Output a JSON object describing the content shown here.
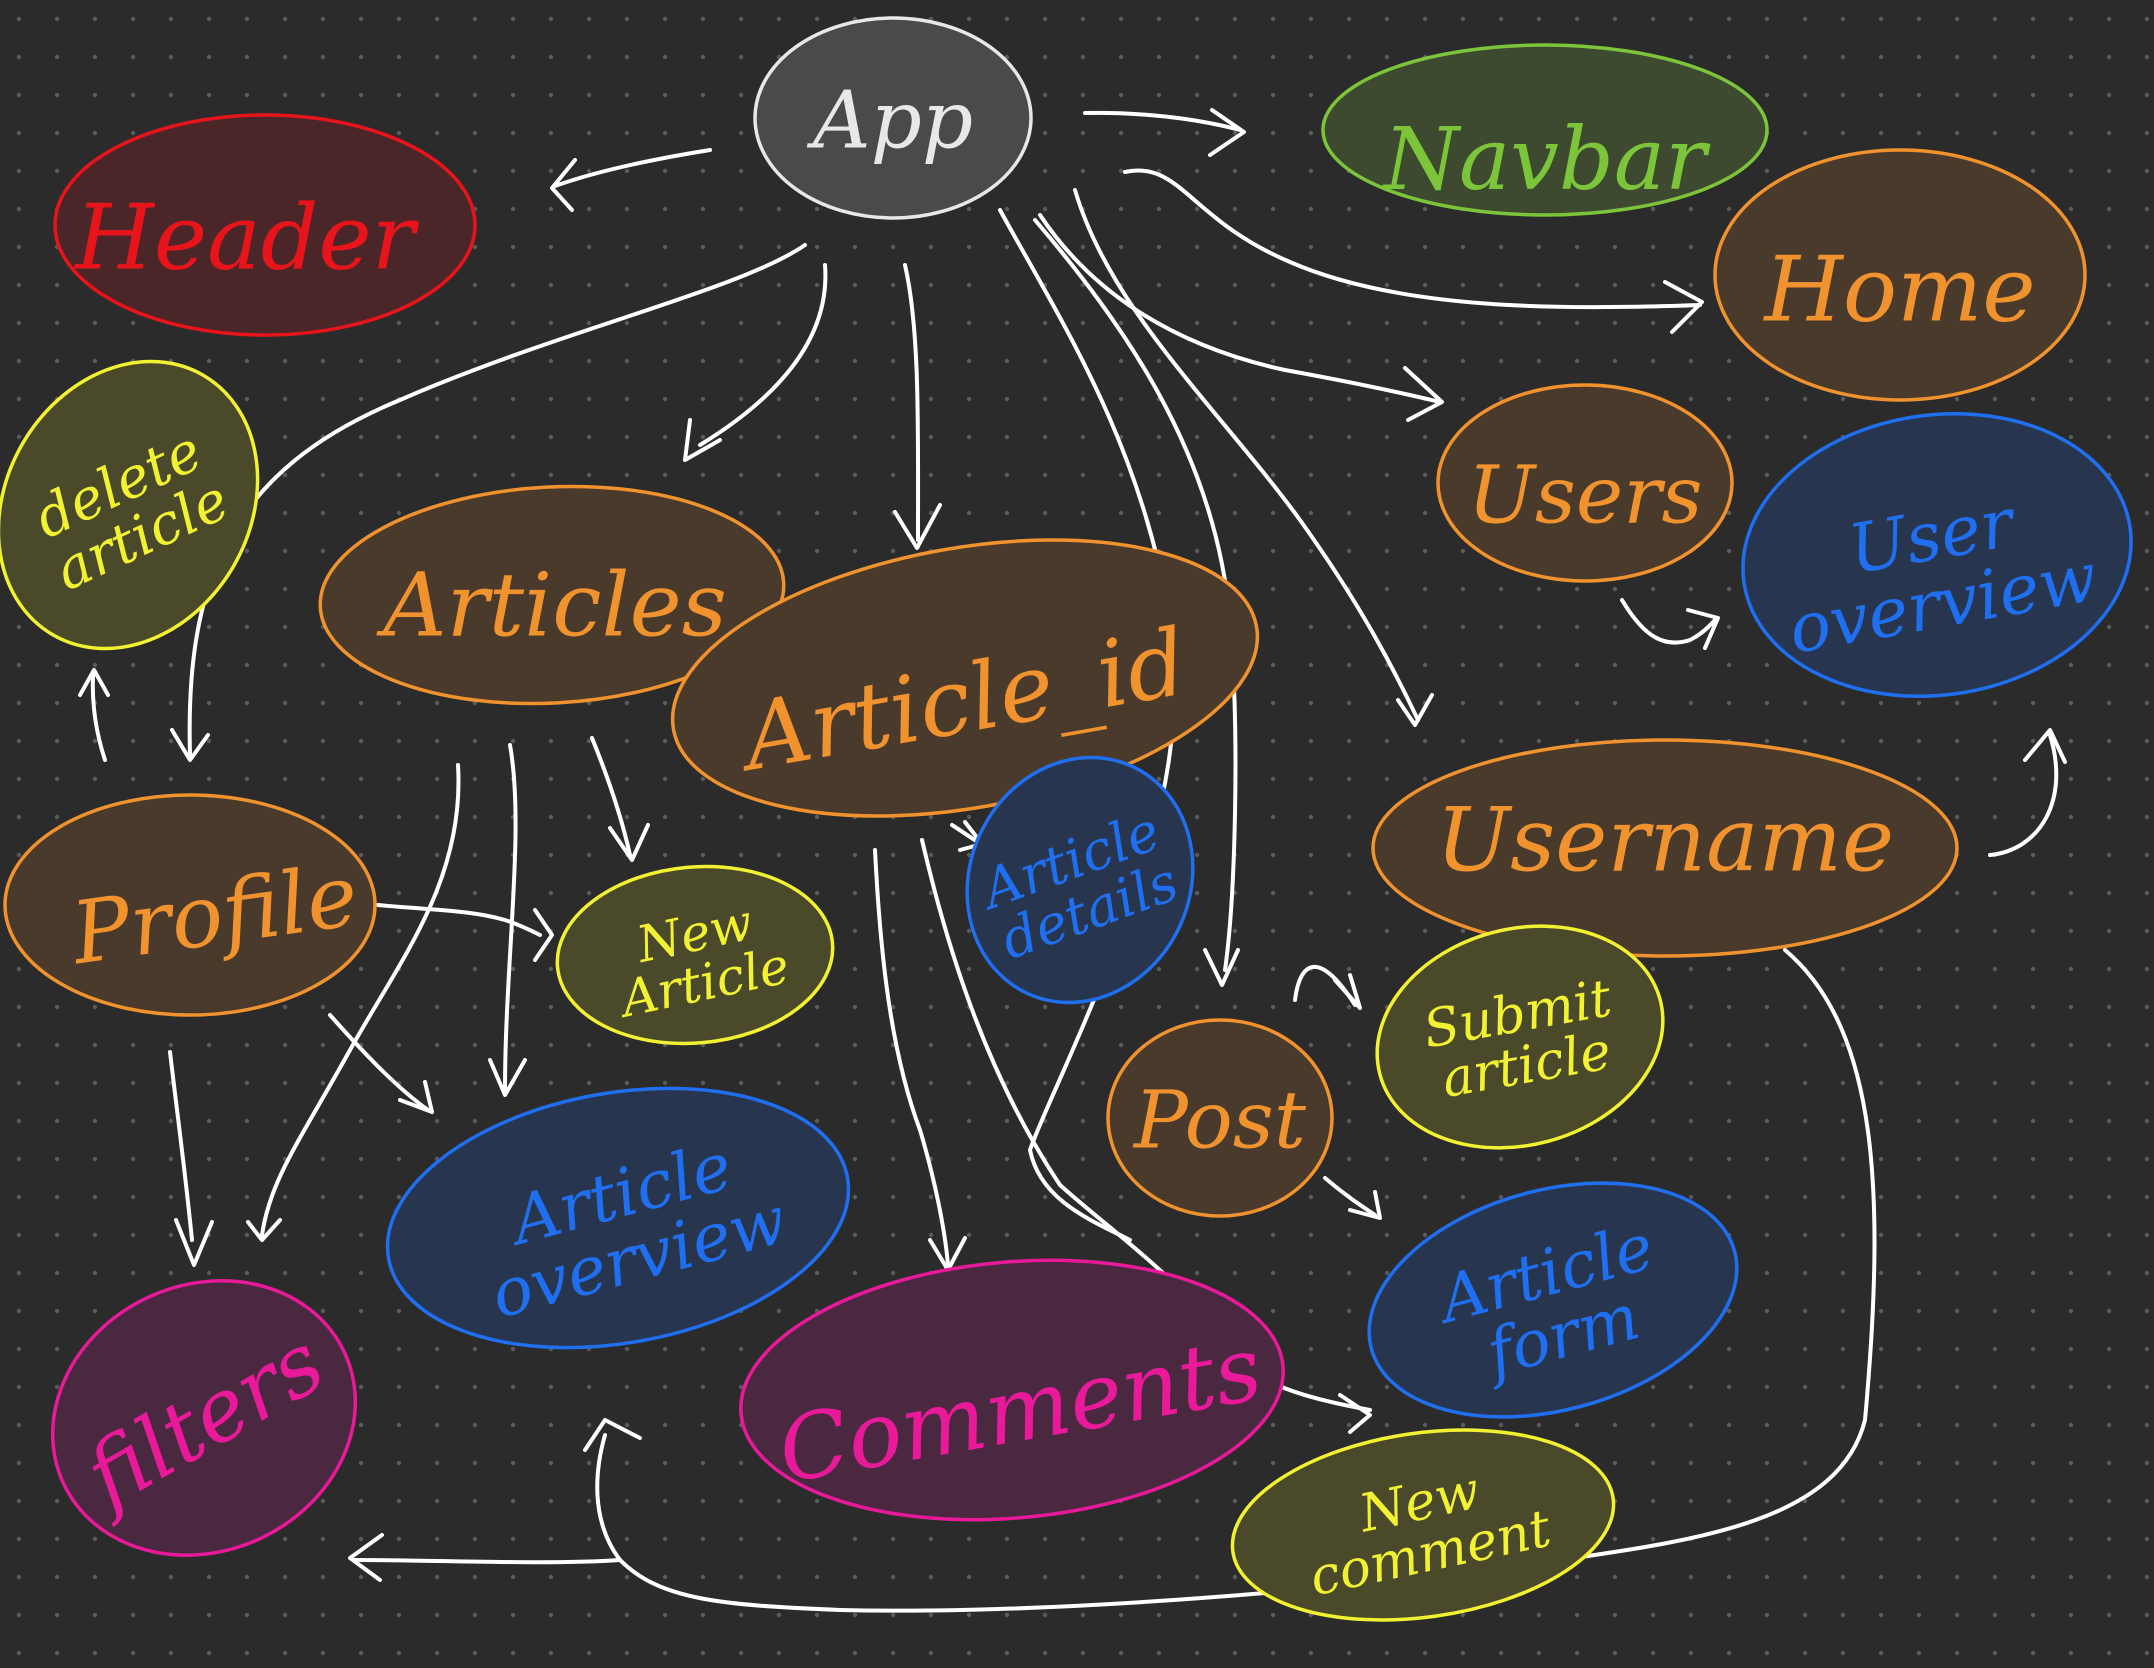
{
  "colors": {
    "background": "#2b2b2b",
    "dot": "#5a5a5a",
    "edge": "#ffffff",
    "gray": "#e8e8e8",
    "red": "#e8141c",
    "green": "#7cc53a",
    "orange": "#f0922e",
    "yellow": "#f2f232",
    "blue": "#1f6ff0",
    "magenta": "#e81a9a"
  },
  "nodes": {
    "app": {
      "label": "App",
      "color": "gray"
    },
    "navbar": {
      "label": "Navbar",
      "color": "green"
    },
    "header": {
      "label": "Header",
      "color": "red"
    },
    "home": {
      "label": "Home",
      "color": "orange"
    },
    "delete_article": {
      "label": "delete article",
      "color": "yellow"
    },
    "users": {
      "label": "Users",
      "color": "orange"
    },
    "user_overview": {
      "label": "User overview",
      "color": "blue"
    },
    "articles": {
      "label": "Articles",
      "color": "orange"
    },
    "article_id": {
      "label": "Article_id",
      "color": "orange"
    },
    "username": {
      "label": "Username",
      "color": "orange"
    },
    "profile": {
      "label": "Profile",
      "color": "orange"
    },
    "new_article": {
      "label": "New Article",
      "color": "yellow"
    },
    "article_details": {
      "label": "Article details",
      "color": "blue"
    },
    "submit_article": {
      "label": "Submit article",
      "color": "yellow"
    },
    "post": {
      "label": "Post",
      "color": "orange"
    },
    "article_overview": {
      "label": "Article overview",
      "color": "blue"
    },
    "article_form": {
      "label": "Article form",
      "color": "blue"
    },
    "filters": {
      "label": "filters",
      "color": "magenta"
    },
    "comments": {
      "label": "Comments",
      "color": "magenta"
    },
    "new_comment": {
      "label": "New comment",
      "color": "yellow"
    }
  },
  "edges": [
    {
      "from": "app",
      "to": "header"
    },
    {
      "from": "app",
      "to": "navbar"
    },
    {
      "from": "app",
      "to": "home"
    },
    {
      "from": "app",
      "to": "users"
    },
    {
      "from": "app",
      "to": "username"
    },
    {
      "from": "app",
      "to": "post"
    },
    {
      "from": "app",
      "to": "article_id"
    },
    {
      "from": "app",
      "to": "articles"
    },
    {
      "from": "app",
      "to": "profile"
    },
    {
      "from": "app",
      "to": "article_details"
    },
    {
      "from": "users",
      "to": "user_overview"
    },
    {
      "from": "username",
      "to": "user_overview"
    },
    {
      "from": "profile",
      "to": "delete_article"
    },
    {
      "from": "profile",
      "to": "new_article"
    },
    {
      "from": "profile",
      "to": "article_overview"
    },
    {
      "from": "profile",
      "to": "filters"
    },
    {
      "from": "articles",
      "to": "new_article"
    },
    {
      "from": "articles",
      "to": "article_overview"
    },
    {
      "from": "articles",
      "to": "filters"
    },
    {
      "from": "article_id",
      "to": "article_details"
    },
    {
      "from": "article_id",
      "to": "comments"
    },
    {
      "from": "article_id",
      "to": "new_comment"
    },
    {
      "from": "post",
      "to": "submit_article"
    },
    {
      "from": "post",
      "to": "article_form"
    },
    {
      "from": "username",
      "to": "article_overview"
    },
    {
      "from": "username",
      "to": "filters"
    }
  ]
}
